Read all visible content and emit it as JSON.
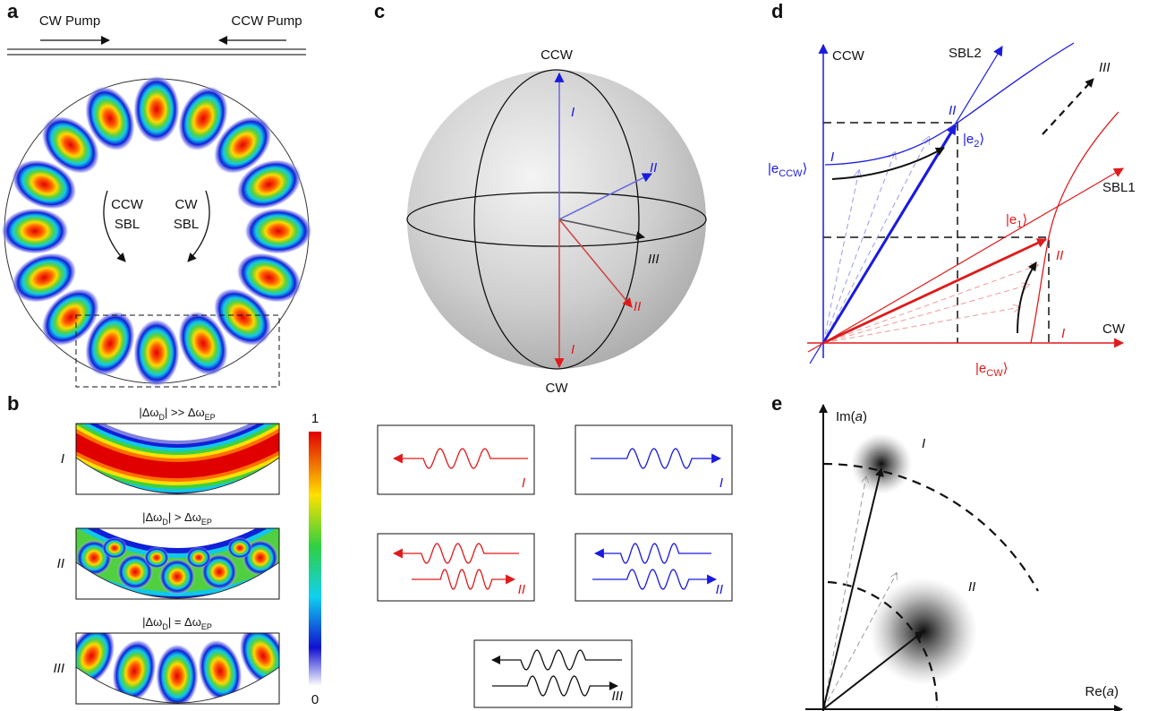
{
  "panel_labels": {
    "a": "a",
    "b": "b",
    "c": "c",
    "d": "d",
    "e": "e"
  },
  "panel_a": {
    "cw_pump": "CW Pump",
    "ccw_pump": "CCW Pump",
    "ccw_sbl": [
      "CCW",
      "SBL"
    ],
    "cw_sbl": [
      "CW",
      "SBL"
    ]
  },
  "panel_b": {
    "rows": [
      {
        "label": "I",
        "condition": [
          "|Δω",
          "D",
          "| >> Δω",
          "EP"
        ]
      },
      {
        "label": "II",
        "condition": [
          "|Δω",
          "D",
          "| > Δω",
          "EP"
        ]
      },
      {
        "label": "III",
        "condition": [
          "|Δω",
          "D",
          "| = Δω",
          "EP"
        ]
      }
    ],
    "colorbar": {
      "max": "1",
      "min": "0"
    }
  },
  "panel_c": {
    "north": "CCW",
    "south": "CW",
    "ccw_vectors": [
      "I",
      "II"
    ],
    "cw_vectors": [
      "I",
      "II"
    ],
    "mixed_vector": "III",
    "wave_boxes": [
      "I",
      "I",
      "II",
      "II",
      "III"
    ]
  },
  "panel_d": {
    "y_axis": "CCW",
    "x_axis": "CW",
    "sbl2": "SBL2",
    "sbl1": "SBL1",
    "ccw_branch": {
      "start": "I",
      "end": "II"
    },
    "cw_branch": {
      "start": "I",
      "end": "II"
    },
    "direction": "III",
    "states": {
      "e_ccw": [
        "|e",
        "CCW",
        "⟩"
      ],
      "e2": [
        "|e",
        "2",
        "⟩"
      ],
      "e1": [
        "|e",
        "1",
        "⟩"
      ],
      "e_cw": [
        "|e",
        "CW",
        "⟩"
      ]
    }
  },
  "panel_e": {
    "y_axis": [
      "Im(",
      "a",
      ")"
    ],
    "x_axis": [
      "Re(",
      "a",
      ")"
    ],
    "states": [
      "I",
      "II"
    ]
  }
}
